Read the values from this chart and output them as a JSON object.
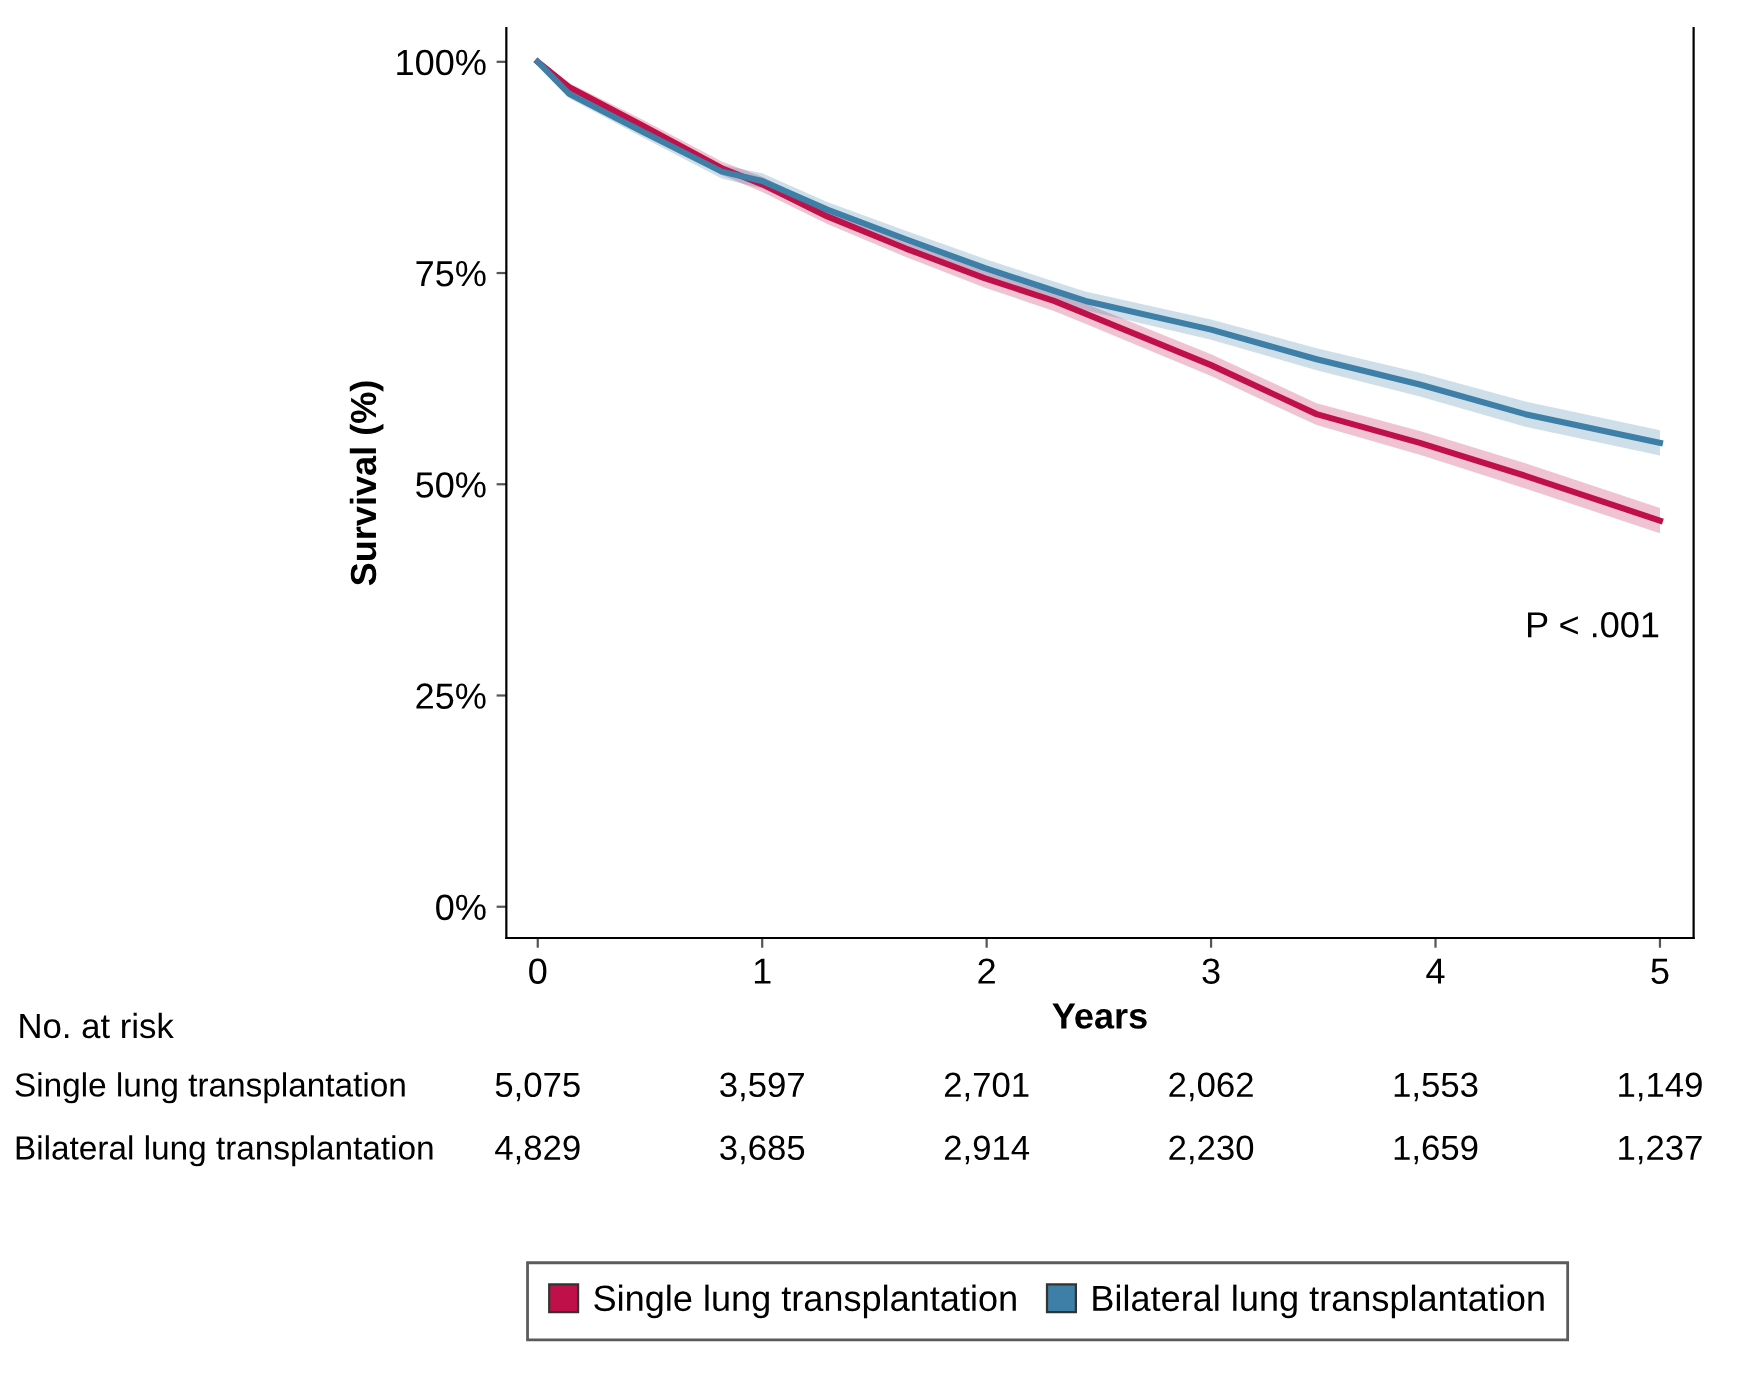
{
  "chart_data": {
    "type": "line",
    "xlabel": "Years",
    "ylabel": "Survival (%)",
    "x": [
      0,
      0.14,
      0.47,
      0.82,
      1,
      1.29,
      1.64,
      1.99,
      2.3,
      2.44,
      3.0,
      3.47,
      3.93,
      4.4,
      5
    ],
    "series": [
      {
        "name": "Single lung transplantation",
        "color": "#c0104a",
        "values": [
          100,
          97,
          92.4,
          87.4,
          85.5,
          81.7,
          77.9,
          74.4,
          71.7,
          70.2,
          64.1,
          58.3,
          54.9,
          51.0,
          45.7
        ],
        "lower": [
          100,
          96.5,
          91.7,
          86.6,
          84.6,
          80.8,
          76.9,
          73.3,
          70.5,
          69.0,
          62.8,
          57.0,
          53.5,
          49.5,
          44.2
        ],
        "upper": [
          100,
          97.5,
          93.1,
          88.2,
          86.4,
          82.6,
          78.9,
          75.5,
          72.9,
          71.4,
          65.4,
          59.6,
          56.3,
          52.5,
          47.2
        ]
      },
      {
        "name": "Bilateral lung transplantation",
        "color": "#3d7fa6",
        "values": [
          100,
          96.2,
          91.7,
          87.0,
          85.9,
          82.5,
          79.0,
          75.6,
          72.9,
          71.7,
          68.3,
          64.8,
          61.8,
          58.3,
          54.9
        ],
        "lower": [
          100,
          95.7,
          91.0,
          86.2,
          85.0,
          81.6,
          78.0,
          74.5,
          71.8,
          70.6,
          67.1,
          63.5,
          60.4,
          56.8,
          53.4
        ],
        "upper": [
          100,
          96.7,
          92.4,
          87.8,
          86.8,
          83.4,
          80.0,
          76.7,
          74.0,
          72.8,
          69.5,
          66.1,
          63.2,
          59.8,
          56.4
        ]
      }
    ],
    "xlim": [
      -0.14,
      5.15
    ],
    "ylim": [
      -3.7,
      104
    ],
    "xticks": [
      0,
      1,
      2,
      3,
      4,
      5
    ],
    "yticks": [
      {
        "value": 0,
        "label": "0%"
      },
      {
        "value": 25,
        "label": "25%"
      },
      {
        "value": 50,
        "label": "50%"
      },
      {
        "value": 75,
        "label": "75%"
      },
      {
        "value": 100,
        "label": "100%"
      }
    ],
    "annotations": [
      "P < .001",
      "No. at risk",
      "5,075",
      "3,597",
      "2,701",
      "2,062",
      "1,553",
      "1,149",
      "4,829",
      "3,685",
      "2,914",
      "2,230",
      "1,659",
      "1,237"
    ],
    "grid": false,
    "legend": "bottom",
    "line_style": "solid",
    "marker": "none"
  }
}
